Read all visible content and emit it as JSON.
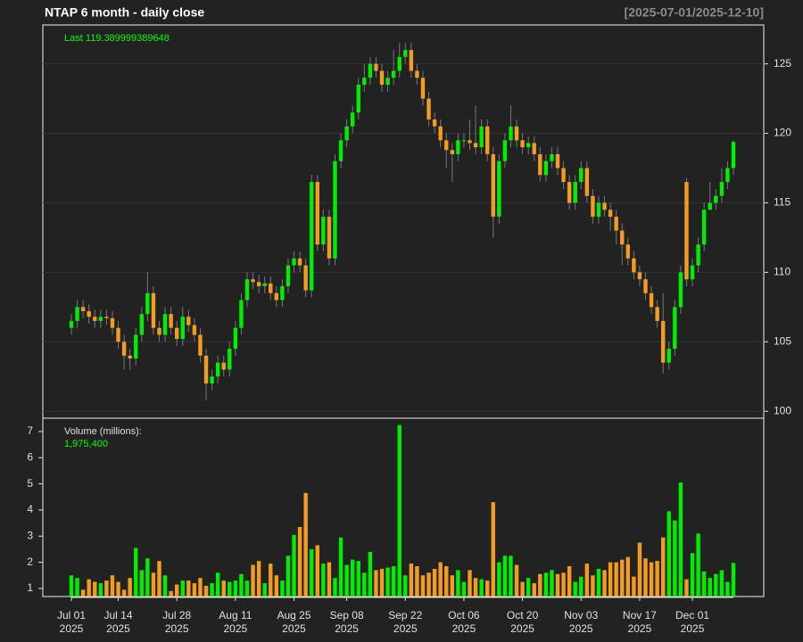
{
  "chart_data": {
    "type": "candlestick",
    "title": "NTAP  6 month - daily close",
    "subtitle": "[2025-07-01/2025-12-10]",
    "annotation": "Last 119.389999389648",
    "up_color": "#00ee00",
    "down_color": "#f39c1f",
    "grid": true,
    "categories": [
      "Jul 01 2025",
      null,
      null,
      null,
      null,
      null,
      null,
      null,
      "Jul 14 2025",
      null,
      null,
      null,
      null,
      null,
      null,
      null,
      null,
      null,
      "Jul 28 2025",
      null,
      null,
      null,
      null,
      null,
      null,
      null,
      null,
      null,
      "Aug 11 2025",
      null,
      null,
      null,
      null,
      null,
      null,
      null,
      null,
      null,
      "Aug 25 2025",
      null,
      null,
      null,
      null,
      null,
      null,
      null,
      null,
      "Sep 08 2025",
      null,
      null,
      null,
      null,
      null,
      null,
      null,
      null,
      null,
      "Sep 22 2025",
      null,
      null,
      null,
      null,
      null,
      null,
      null,
      null,
      null,
      "Oct 06 2025",
      null,
      null,
      null,
      null,
      null,
      null,
      null,
      null,
      null,
      "Oct 20 2025",
      null,
      null,
      null,
      null,
      null,
      null,
      null,
      null,
      null,
      "Nov 03 2025",
      null,
      null,
      null,
      null,
      null,
      null,
      null,
      null,
      null,
      "Nov 17 2025",
      null,
      null,
      null,
      null,
      null,
      null,
      null,
      null,
      "Dec 01 2025",
      null,
      null,
      null,
      null,
      null,
      null,
      null
    ],
    "open": [
      106.0,
      106.5,
      107.5,
      107.2,
      106.8,
      106.5,
      106.8,
      106.7,
      106.0,
      105.0,
      104.0,
      103.8,
      105.5,
      107.0,
      108.5,
      106.0,
      105.5,
      107.0,
      106.0,
      105.2,
      106.8,
      106.2,
      105.5,
      104.0,
      102.0,
      102.5,
      103.5,
      103.0,
      104.5,
      106.0,
      108.0,
      109.5,
      109.3,
      109.0,
      109.2,
      108.5,
      108.0,
      109.0,
      110.5,
      111.0,
      110.5,
      108.7,
      116.5,
      112.0,
      114.0,
      111.0,
      118.0,
      119.5,
      120.5,
      121.5,
      123.5,
      124.0,
      125.0,
      124.5,
      123.5,
      124.0,
      124.5,
      125.5,
      126.0,
      124.5,
      124.0,
      122.5,
      121.0,
      120.5,
      119.5,
      118.8,
      118.5,
      119.5,
      119.5,
      119.3,
      119.0,
      120.5,
      118.5,
      114.0,
      118.0,
      119.5,
      120.5,
      119.5,
      119.0,
      119.3,
      118.5,
      117.0,
      118.0,
      118.5,
      117.5,
      116.5,
      115.0,
      116.5,
      117.5,
      115.5,
      114.0,
      115.0,
      114.5,
      114.0,
      113.0,
      112.0,
      111.0,
      110.0,
      109.5,
      108.5,
      107.5,
      106.5,
      103.5,
      104.5,
      107.5,
      116.5,
      109.5,
      110.5,
      112.0,
      114.5,
      115.0,
      115.5,
      116.5,
      117.5
    ],
    "high": [
      107.0,
      108.0,
      108.0,
      107.7,
      107.3,
      107.3,
      107.3,
      107.2,
      106.5,
      105.5,
      104.5,
      106.0,
      107.5,
      110.0,
      109.0,
      106.5,
      107.5,
      107.5,
      106.5,
      107.5,
      107.3,
      106.7,
      106.0,
      104.5,
      103.0,
      104.0,
      104.0,
      105.0,
      106.5,
      108.5,
      110.0,
      110.0,
      109.8,
      109.7,
      109.7,
      109.0,
      109.5,
      111.0,
      111.5,
      111.5,
      111.0,
      117.0,
      117.0,
      114.5,
      114.5,
      118.5,
      120.0,
      121.0,
      122.0,
      124.0,
      125.0,
      125.5,
      125.5,
      125.0,
      124.5,
      126.0,
      126.5,
      126.5,
      126.5,
      125.0,
      124.5,
      123.0,
      121.5,
      121.0,
      120.0,
      119.3,
      120.0,
      120.0,
      121.0,
      122.0,
      121.0,
      121.0,
      119.0,
      118.5,
      120.0,
      122.0,
      121.0,
      120.0,
      119.8,
      119.8,
      119.0,
      118.5,
      119.0,
      119.0,
      118.0,
      117.0,
      117.0,
      118.0,
      118.0,
      116.0,
      115.5,
      115.5,
      115.0,
      114.5,
      113.5,
      112.5,
      111.5,
      110.5,
      110.0,
      109.0,
      108.0,
      108.5,
      105.0,
      108.0,
      110.5,
      116.8,
      111.0,
      112.5,
      115.0,
      116.5,
      116.0,
      117.5,
      118.0,
      119.5
    ],
    "low": [
      105.5,
      106.0,
      106.7,
      106.3,
      106.0,
      106.0,
      106.2,
      105.5,
      104.5,
      103.0,
      103.0,
      103.3,
      105.0,
      106.5,
      105.5,
      105.0,
      105.0,
      105.5,
      104.7,
      104.7,
      105.7,
      105.0,
      103.5,
      100.8,
      101.5,
      102.0,
      102.5,
      102.5,
      104.0,
      105.5,
      107.5,
      108.8,
      108.5,
      108.5,
      108.0,
      107.5,
      107.5,
      108.5,
      110.0,
      110.0,
      108.2,
      108.2,
      111.5,
      111.5,
      110.5,
      110.5,
      117.5,
      119.0,
      120.0,
      121.0,
      123.0,
      123.5,
      124.0,
      123.0,
      123.0,
      123.5,
      124.0,
      125.0,
      124.0,
      123.5,
      122.0,
      120.5,
      120.0,
      119.0,
      117.5,
      116.5,
      118.0,
      119.0,
      118.8,
      118.5,
      118.5,
      118.0,
      112.5,
      113.5,
      117.5,
      119.0,
      119.0,
      118.5,
      118.5,
      118.0,
      116.5,
      116.5,
      117.5,
      117.0,
      116.0,
      114.5,
      114.5,
      116.0,
      115.0,
      113.5,
      113.5,
      114.0,
      113.0,
      112.0,
      110.5,
      110.5,
      109.5,
      109.0,
      108.0,
      107.0,
      106.0,
      102.7,
      103.0,
      104.0,
      107.0,
      109.0,
      109.0,
      110.0,
      111.5,
      114.5,
      114.5,
      115.0,
      116.0,
      117.0
    ],
    "close": [
      106.5,
      107.5,
      107.2,
      106.8,
      106.5,
      106.8,
      106.7,
      106.0,
      105.0,
      104.0,
      103.8,
      105.5,
      107.0,
      108.5,
      106.0,
      105.5,
      107.0,
      106.0,
      105.2,
      106.8,
      106.2,
      105.5,
      104.0,
      102.0,
      102.5,
      103.5,
      103.0,
      104.5,
      106.0,
      108.0,
      109.5,
      109.3,
      109.0,
      109.2,
      108.5,
      108.0,
      109.0,
      110.5,
      111.0,
      110.5,
      108.7,
      116.5,
      112.0,
      114.0,
      111.0,
      118.0,
      119.5,
      120.5,
      121.5,
      123.5,
      124.0,
      125.0,
      124.5,
      123.5,
      124.0,
      124.5,
      125.5,
      126.0,
      124.5,
      124.0,
      122.5,
      121.0,
      120.5,
      119.5,
      118.8,
      118.5,
      119.5,
      119.5,
      119.3,
      119.0,
      120.5,
      118.5,
      114.0,
      118.0,
      119.5,
      120.5,
      119.5,
      119.0,
      119.3,
      118.5,
      117.0,
      118.0,
      118.5,
      117.5,
      116.5,
      115.0,
      116.5,
      117.5,
      115.5,
      114.0,
      115.0,
      114.5,
      114.0,
      113.0,
      112.0,
      111.0,
      110.0,
      109.5,
      108.5,
      107.5,
      106.5,
      103.5,
      104.5,
      107.5,
      110.0,
      109.5,
      110.5,
      112.0,
      114.5,
      115.0,
      115.5,
      116.5,
      117.5,
      119.39
    ],
    "ylim": [
      99.5,
      127.8
    ],
    "yticks": [
      100,
      105,
      110,
      115,
      120,
      125
    ],
    "volume": {
      "label": "Volume (millions):",
      "annotation": "1,975,400",
      "values": [
        1.5,
        1.4,
        0.95,
        1.35,
        1.25,
        1.2,
        1.3,
        1.5,
        1.25,
        0.95,
        1.4,
        2.55,
        1.7,
        2.15,
        1.6,
        2.05,
        1.5,
        0.9,
        1.15,
        1.3,
        1.3,
        1.2,
        1.4,
        1.1,
        1.2,
        1.6,
        1.3,
        1.25,
        1.3,
        1.55,
        1.3,
        1.9,
        2.05,
        1.2,
        1.95,
        1.5,
        1.3,
        2.25,
        3.05,
        3.35,
        4.65,
        2.5,
        2.65,
        1.95,
        2.0,
        1.4,
        2.95,
        1.9,
        2.1,
        2.05,
        1.6,
        2.4,
        1.7,
        1.75,
        1.8,
        1.85,
        7.25,
        1.5,
        1.95,
        1.85,
        1.5,
        1.6,
        1.75,
        2.0,
        1.85,
        1.5,
        1.7,
        1.25,
        1.7,
        1.4,
        1.35,
        1.3,
        4.3,
        2.0,
        2.25,
        2.25,
        1.9,
        1.25,
        1.4,
        1.2,
        1.55,
        1.6,
        1.7,
        1.55,
        1.6,
        1.85,
        1.25,
        1.45,
        1.95,
        1.5,
        1.75,
        1.7,
        2.0,
        2.0,
        2.1,
        2.2,
        1.45,
        2.75,
        2.15,
        2.0,
        2.05,
        2.95,
        3.95,
        3.6,
        5.05,
        1.35,
        2.35,
        3.1,
        1.65,
        1.4,
        1.55,
        1.7,
        1.25,
        1.9754
      ],
      "ylim": [
        0.69,
        7.51
      ],
      "yticks": [
        1,
        2,
        3,
        4,
        5,
        6,
        7
      ]
    }
  }
}
